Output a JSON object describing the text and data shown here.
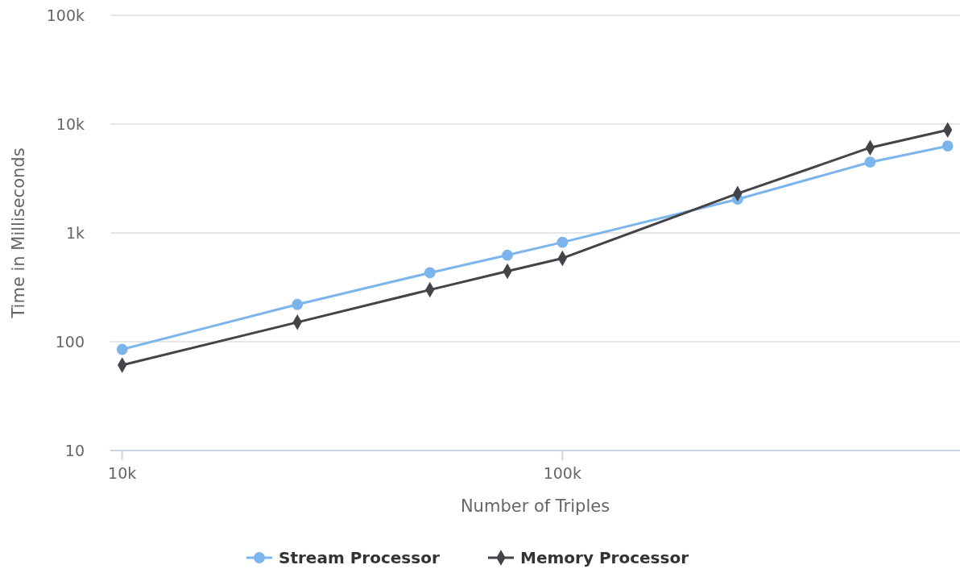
{
  "chart_data": {
    "type": "line",
    "xlabel": "Number of Triples",
    "ylabel": "Time in Milliseconds",
    "log": "xy",
    "grid": "y",
    "legend": "bottom",
    "xlim": [
      9400,
      800000
    ],
    "xticks": [
      {
        "value": 10000,
        "label": "10k"
      },
      {
        "value": 100000,
        "label": "100k"
      }
    ],
    "ylim": [
      10,
      100000
    ],
    "yticks": [
      10,
      100,
      {
        "value": 1000,
        "label": "1k"
      },
      {
        "value": 10000,
        "label": "10k"
      },
      {
        "value": 100000,
        "label": "100k"
      }
    ],
    "x": [
      10000,
      25000,
      50000,
      75000,
      100000,
      250000,
      500000,
      750000
    ],
    "series": [
      {
        "name": "Stream Processor",
        "color": "#7cb5ec",
        "marker": "circle",
        "values": [
          85,
          220,
          430,
          625,
          820,
          2040,
          4470,
          6290
        ]
      },
      {
        "name": "Memory Processor",
        "color": "#434348",
        "marker": "diamond",
        "values": [
          61,
          151,
          300,
          445,
          585,
          2300,
          6080,
          8850
        ]
      }
    ]
  }
}
